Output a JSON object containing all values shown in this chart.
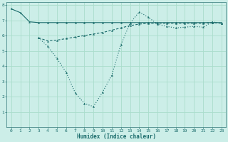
{
  "background_color": "#cceee8",
  "grid_color": "#aaddcc",
  "line_color": "#1a6b6b",
  "xlim": [
    -0.5,
    23.5
  ],
  "ylim": [
    0,
    8.2
  ],
  "xlabel": "Humidex (Indice chaleur)",
  "yticks": [
    1,
    2,
    3,
    4,
    5,
    6,
    7,
    8
  ],
  "xticks": [
    0,
    1,
    2,
    3,
    4,
    5,
    6,
    7,
    8,
    9,
    10,
    11,
    12,
    13,
    14,
    15,
    16,
    17,
    18,
    19,
    20,
    21,
    22,
    23
  ],
  "line1_x": [
    0,
    1,
    2,
    3,
    4,
    5,
    6,
    7,
    8,
    9,
    10,
    11,
    12,
    13,
    14,
    15,
    16,
    17,
    18,
    19,
    20,
    21,
    22,
    23
  ],
  "line1_y": [
    7.75,
    7.5,
    6.9,
    6.85,
    6.85,
    6.85,
    6.85,
    6.85,
    6.85,
    6.85,
    6.85,
    6.85,
    6.85,
    6.85,
    6.85,
    6.85,
    6.85,
    6.85,
    6.85,
    6.85,
    6.85,
    6.85,
    6.85,
    6.85
  ],
  "line2_x": [
    3,
    4,
    5,
    6,
    7,
    8,
    9,
    10,
    11,
    12,
    13,
    14,
    15,
    16,
    17,
    18,
    19,
    20,
    21,
    22,
    23
  ],
  "line2_y": [
    5.85,
    5.3,
    4.5,
    3.6,
    2.25,
    1.55,
    1.35,
    2.3,
    3.4,
    5.4,
    6.8,
    7.55,
    7.2,
    6.75,
    6.6,
    6.5,
    6.55,
    6.6,
    6.55,
    6.9,
    6.8
  ],
  "line3_x": [
    3,
    4,
    5,
    6,
    7,
    8,
    9,
    10,
    11,
    12,
    13,
    14,
    15,
    16,
    17,
    18,
    19,
    20,
    21,
    22,
    23
  ],
  "line3_y": [
    5.85,
    5.65,
    5.7,
    5.8,
    5.9,
    6.0,
    6.1,
    6.2,
    6.35,
    6.5,
    6.65,
    6.75,
    6.8,
    6.8,
    6.8,
    6.8,
    6.8,
    6.8,
    6.8,
    6.85,
    6.8
  ],
  "tick_fontsize": 4.5,
  "xlabel_fontsize": 5.5
}
